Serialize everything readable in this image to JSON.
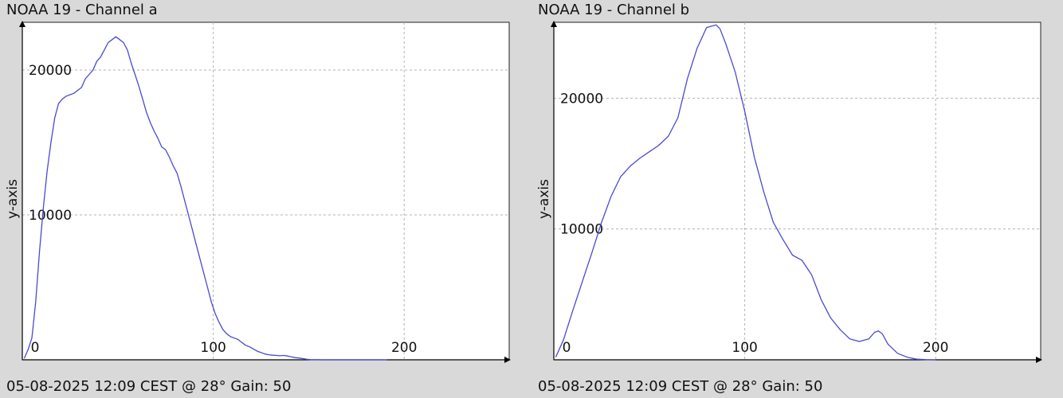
{
  "chart_data": [
    {
      "type": "line",
      "title": "NOAA 19 - Channel a",
      "xlabel": "",
      "ylabel": "y-axis",
      "footer": "05-08-2025 12:09 CEST @ 28° Gain: 50",
      "xlim": [
        0,
        255
      ],
      "ylim": [
        0,
        23300
      ],
      "x_ticks": [
        0,
        100,
        200
      ],
      "y_ticks": [
        10000,
        20000
      ],
      "grid": true,
      "color": "#4a4acf",
      "series": [
        {
          "x": [
            1,
            3,
            5,
            7,
            9,
            11,
            13,
            15,
            17,
            19,
            21,
            23,
            25,
            27,
            29,
            31,
            33,
            35,
            37,
            39,
            41,
            43,
            45,
            47,
            49,
            51,
            53,
            55,
            57,
            59,
            61,
            63,
            65,
            67,
            69,
            71,
            73,
            75,
            77,
            79,
            81,
            83,
            85,
            87,
            89,
            91,
            93,
            95,
            97,
            99,
            101,
            103,
            105,
            107,
            109,
            111,
            113,
            115,
            117,
            119,
            121,
            123,
            125,
            127,
            129,
            131,
            133,
            135,
            137,
            139,
            141,
            143,
            145,
            147,
            149,
            151,
            153,
            155,
            157,
            159,
            161,
            163,
            165,
            167,
            169,
            171,
            173,
            175,
            177,
            179,
            181,
            183,
            185,
            187,
            189,
            191
          ],
          "values": [
            100,
            700,
            1500,
            4000,
            7500,
            10500,
            13000,
            15000,
            16700,
            17700,
            18000,
            18200,
            18300,
            18400,
            18600,
            18800,
            19400,
            19700,
            20000,
            20600,
            20900,
            21400,
            21900,
            22100,
            22300,
            22100,
            21900,
            21400,
            20500,
            19700,
            18900,
            18000,
            17100,
            16400,
            15800,
            15300,
            14700,
            14500,
            14000,
            13400,
            12900,
            12000,
            11000,
            10000,
            9000,
            8000,
            7000,
            6000,
            5000,
            4000,
            3200,
            2600,
            2100,
            1800,
            1600,
            1500,
            1400,
            1200,
            1000,
            900,
            750,
            600,
            500,
            400,
            350,
            320,
            300,
            280,
            300,
            260,
            200,
            150,
            120,
            80,
            40,
            10,
            5,
            3,
            2,
            1,
            1,
            1,
            1,
            1,
            1,
            1,
            1,
            1,
            1,
            1,
            1,
            1,
            1,
            1,
            1,
            1
          ]
        }
      ]
    },
    {
      "type": "line",
      "title": "NOAA 19 - Channel b",
      "xlabel": "",
      "ylabel": "y-axis",
      "footer": "05-08-2025 12:09 CEST @ 28° Gain: 50",
      "xlim": [
        0,
        255
      ],
      "ylim": [
        0,
        25800
      ],
      "x_ticks": [
        0,
        100,
        200
      ],
      "y_ticks": [
        10000,
        20000
      ],
      "grid": true,
      "color": "#4a4acf",
      "series": [
        {
          "x": [
            1,
            5,
            10,
            15,
            20,
            25,
            30,
            35,
            40,
            45,
            50,
            55,
            60,
            65,
            70,
            75,
            80,
            85,
            87,
            90,
            95,
            100,
            105,
            110,
            115,
            120,
            125,
            130,
            135,
            140,
            145,
            150,
            155,
            160,
            165,
            168,
            170,
            172,
            175,
            180,
            185,
            190,
            195,
            200
          ],
          "values": [
            200,
            1500,
            3800,
            6000,
            8200,
            10500,
            12500,
            14000,
            14800,
            15400,
            15900,
            16400,
            17100,
            18500,
            21500,
            23800,
            25400,
            25600,
            25300,
            24200,
            22000,
            19000,
            15500,
            12800,
            10500,
            9200,
            8000,
            7600,
            6500,
            4600,
            3200,
            2300,
            1600,
            1400,
            1600,
            2100,
            2200,
            2000,
            1200,
            500,
            200,
            50,
            10,
            1
          ]
        }
      ]
    }
  ]
}
